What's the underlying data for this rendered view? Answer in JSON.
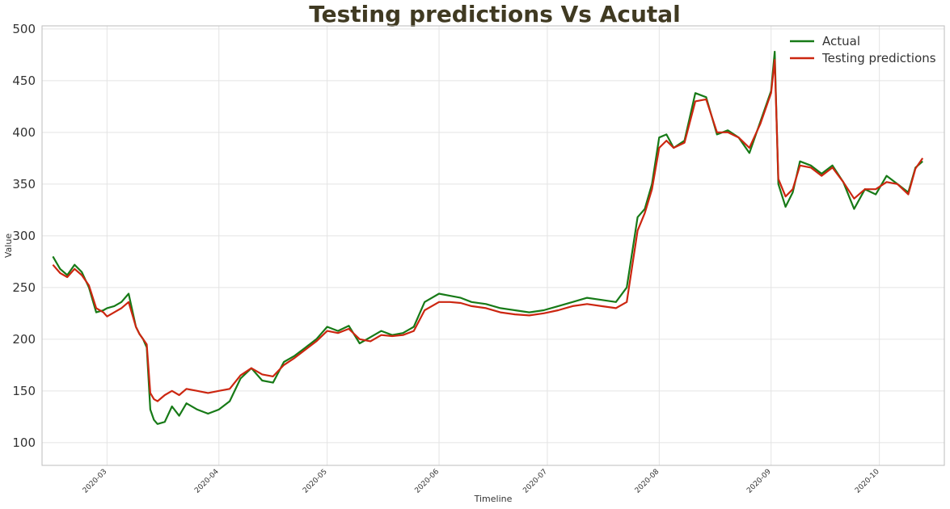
{
  "chart_data": {
    "type": "line",
    "title": "Testing predictions Vs Acutal",
    "xlabel": "Timeline",
    "ylabel": "Value",
    "xlim": [
      "2020-02-12",
      "2020-10-19"
    ],
    "ylim": [
      78,
      503
    ],
    "yticks": [
      100,
      150,
      200,
      250,
      300,
      350,
      400,
      450,
      500
    ],
    "xticks": [
      "2020-03-01",
      "2020-04-01",
      "2020-05-01",
      "2020-06-01",
      "2020-07-01",
      "2020-08-01",
      "2020-09-01",
      "2020-10-01"
    ],
    "xtick_labels": [
      "2020-03",
      "2020-04",
      "2020-05",
      "2020-06",
      "2020-07",
      "2020-08",
      "2020-09",
      "2020-10"
    ],
    "grid": true,
    "legend_position": "top-right",
    "series": [
      {
        "name": "Actual",
        "color": "#177a17",
        "x": [
          "2020-02-15",
          "2020-02-17",
          "2020-02-19",
          "2020-02-21",
          "2020-02-23",
          "2020-02-25",
          "2020-02-27",
          "2020-02-29",
          "2020-03-01",
          "2020-03-03",
          "2020-03-05",
          "2020-03-07",
          "2020-03-09",
          "2020-03-10",
          "2020-03-11",
          "2020-03-12",
          "2020-03-13",
          "2020-03-14",
          "2020-03-15",
          "2020-03-17",
          "2020-03-19",
          "2020-03-21",
          "2020-03-23",
          "2020-03-26",
          "2020-03-29",
          "2020-04-01",
          "2020-04-04",
          "2020-04-07",
          "2020-04-10",
          "2020-04-13",
          "2020-04-16",
          "2020-04-19",
          "2020-04-22",
          "2020-04-25",
          "2020-04-28",
          "2020-05-01",
          "2020-05-04",
          "2020-05-07",
          "2020-05-10",
          "2020-05-13",
          "2020-05-16",
          "2020-05-19",
          "2020-05-22",
          "2020-05-25",
          "2020-05-28",
          "2020-06-01",
          "2020-06-04",
          "2020-06-07",
          "2020-06-10",
          "2020-06-14",
          "2020-06-18",
          "2020-06-22",
          "2020-06-26",
          "2020-06-30",
          "2020-07-04",
          "2020-07-08",
          "2020-07-12",
          "2020-07-16",
          "2020-07-20",
          "2020-07-23",
          "2020-07-26",
          "2020-07-28",
          "2020-07-30",
          "2020-08-01",
          "2020-08-03",
          "2020-08-05",
          "2020-08-08",
          "2020-08-11",
          "2020-08-14",
          "2020-08-17",
          "2020-08-20",
          "2020-08-23",
          "2020-08-26",
          "2020-08-29",
          "2020-09-01",
          "2020-09-02",
          "2020-09-03",
          "2020-09-05",
          "2020-09-07",
          "2020-09-09",
          "2020-09-12",
          "2020-09-15",
          "2020-09-18",
          "2020-09-21",
          "2020-09-24",
          "2020-09-27",
          "2020-09-30",
          "2020-10-03",
          "2020-10-06",
          "2020-10-09",
          "2020-10-11",
          "2020-10-13"
        ],
        "y": [
          280,
          268,
          262,
          272,
          265,
          250,
          226,
          228,
          230,
          232,
          236,
          244,
          212,
          205,
          200,
          192,
          132,
          122,
          118,
          120,
          135,
          126,
          138,
          132,
          128,
          132,
          140,
          162,
          172,
          160,
          158,
          178,
          184,
          192,
          200,
          212,
          208,
          213,
          196,
          202,
          208,
          204,
          206,
          212,
          236,
          244,
          242,
          240,
          236,
          234,
          230,
          228,
          226,
          228,
          232,
          236,
          240,
          238,
          236,
          250,
          318,
          326,
          350,
          395,
          398,
          385,
          392,
          438,
          434,
          398,
          402,
          395,
          380,
          410,
          440,
          478,
          350,
          328,
          342,
          372,
          368,
          360,
          368,
          352,
          326,
          345,
          340,
          358,
          350,
          342,
          366,
          372
        ]
      },
      {
        "name": "Testing predictions",
        "color": "#cc2610",
        "x": [
          "2020-02-15",
          "2020-02-17",
          "2020-02-19",
          "2020-02-21",
          "2020-02-23",
          "2020-02-25",
          "2020-02-27",
          "2020-02-29",
          "2020-03-01",
          "2020-03-03",
          "2020-03-05",
          "2020-03-07",
          "2020-03-09",
          "2020-03-10",
          "2020-03-11",
          "2020-03-12",
          "2020-03-13",
          "2020-03-14",
          "2020-03-15",
          "2020-03-17",
          "2020-03-19",
          "2020-03-21",
          "2020-03-23",
          "2020-03-26",
          "2020-03-29",
          "2020-04-01",
          "2020-04-04",
          "2020-04-07",
          "2020-04-10",
          "2020-04-13",
          "2020-04-16",
          "2020-04-19",
          "2020-04-22",
          "2020-04-25",
          "2020-04-28",
          "2020-05-01",
          "2020-05-04",
          "2020-05-07",
          "2020-05-10",
          "2020-05-13",
          "2020-05-16",
          "2020-05-19",
          "2020-05-22",
          "2020-05-25",
          "2020-05-28",
          "2020-06-01",
          "2020-06-04",
          "2020-06-07",
          "2020-06-10",
          "2020-06-14",
          "2020-06-18",
          "2020-06-22",
          "2020-06-26",
          "2020-06-30",
          "2020-07-04",
          "2020-07-08",
          "2020-07-12",
          "2020-07-16",
          "2020-07-20",
          "2020-07-23",
          "2020-07-26",
          "2020-07-28",
          "2020-07-30",
          "2020-08-01",
          "2020-08-03",
          "2020-08-05",
          "2020-08-08",
          "2020-08-11",
          "2020-08-14",
          "2020-08-17",
          "2020-08-20",
          "2020-08-23",
          "2020-08-26",
          "2020-08-29",
          "2020-09-01",
          "2020-09-02",
          "2020-09-03",
          "2020-09-05",
          "2020-09-07",
          "2020-09-09",
          "2020-09-12",
          "2020-09-15",
          "2020-09-18",
          "2020-09-21",
          "2020-09-24",
          "2020-09-27",
          "2020-09-30",
          "2020-10-03",
          "2020-10-06",
          "2020-10-09",
          "2020-10-11",
          "2020-10-13"
        ],
        "y": [
          272,
          264,
          260,
          268,
          262,
          252,
          230,
          226,
          222,
          226,
          230,
          236,
          212,
          205,
          200,
          195,
          148,
          142,
          140,
          146,
          150,
          146,
          152,
          150,
          148,
          150,
          152,
          165,
          172,
          166,
          164,
          175,
          182,
          190,
          198,
          208,
          206,
          210,
          200,
          198,
          204,
          203,
          204,
          208,
          228,
          236,
          236,
          235,
          232,
          230,
          226,
          224,
          223,
          225,
          228,
          232,
          234,
          232,
          230,
          236,
          305,
          322,
          345,
          385,
          392,
          385,
          390,
          430,
          432,
          400,
          400,
          395,
          385,
          408,
          438,
          470,
          355,
          338,
          345,
          368,
          366,
          358,
          366,
          352,
          336,
          345,
          345,
          352,
          350,
          340,
          365,
          375
        ]
      }
    ]
  }
}
